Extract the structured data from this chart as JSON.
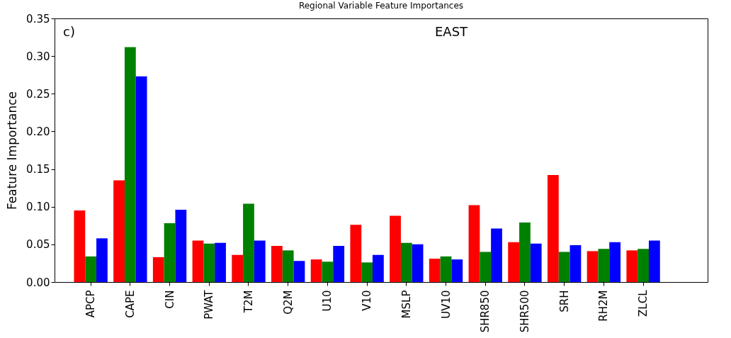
{
  "chart_data": {
    "type": "bar",
    "title": "Regional Variable Feature Importances",
    "ylabel": "Feature Importance",
    "annotations": [
      "c)",
      "EAST"
    ],
    "categories": [
      "APCP",
      "CAPE",
      "CIN",
      "PWAT",
      "T2M",
      "Q2M",
      "U10",
      "V10",
      "MSLP",
      "UV10",
      "SHR850",
      "SHR500",
      "SRH",
      "RH2M",
      "ZLCL"
    ],
    "series": [
      {
        "color": "#ff0000",
        "values": [
          0.095,
          0.135,
          0.033,
          0.055,
          0.036,
          0.048,
          0.03,
          0.076,
          0.088,
          0.031,
          0.102,
          0.053,
          0.142,
          0.041,
          0.042
        ]
      },
      {
        "color": "#008000",
        "values": [
          0.034,
          0.312,
          0.078,
          0.051,
          0.104,
          0.042,
          0.027,
          0.026,
          0.052,
          0.034,
          0.04,
          0.079,
          0.04,
          0.044,
          0.044
        ]
      },
      {
        "color": "#0000ff",
        "values": [
          0.058,
          0.273,
          0.096,
          0.052,
          0.055,
          0.028,
          0.048,
          0.036,
          0.05,
          0.03,
          0.071,
          0.051,
          0.049,
          0.053,
          0.055
        ]
      }
    ],
    "ylim": [
      0,
      0.35
    ],
    "yticks": [
      {
        "value": 0,
        "label": "0.00"
      },
      {
        "value": 0.05,
        "label": "0.05"
      },
      {
        "value": 0.1,
        "label": "0.10"
      },
      {
        "value": 0.15,
        "label": "0.15"
      },
      {
        "value": 0.2,
        "label": "0.20"
      },
      {
        "value": 0.25,
        "label": "0.25"
      },
      {
        "value": 0.3,
        "label": "0.30"
      },
      {
        "value": 0.35,
        "label": "0.35"
      }
    ],
    "grid": false,
    "legend": false
  }
}
